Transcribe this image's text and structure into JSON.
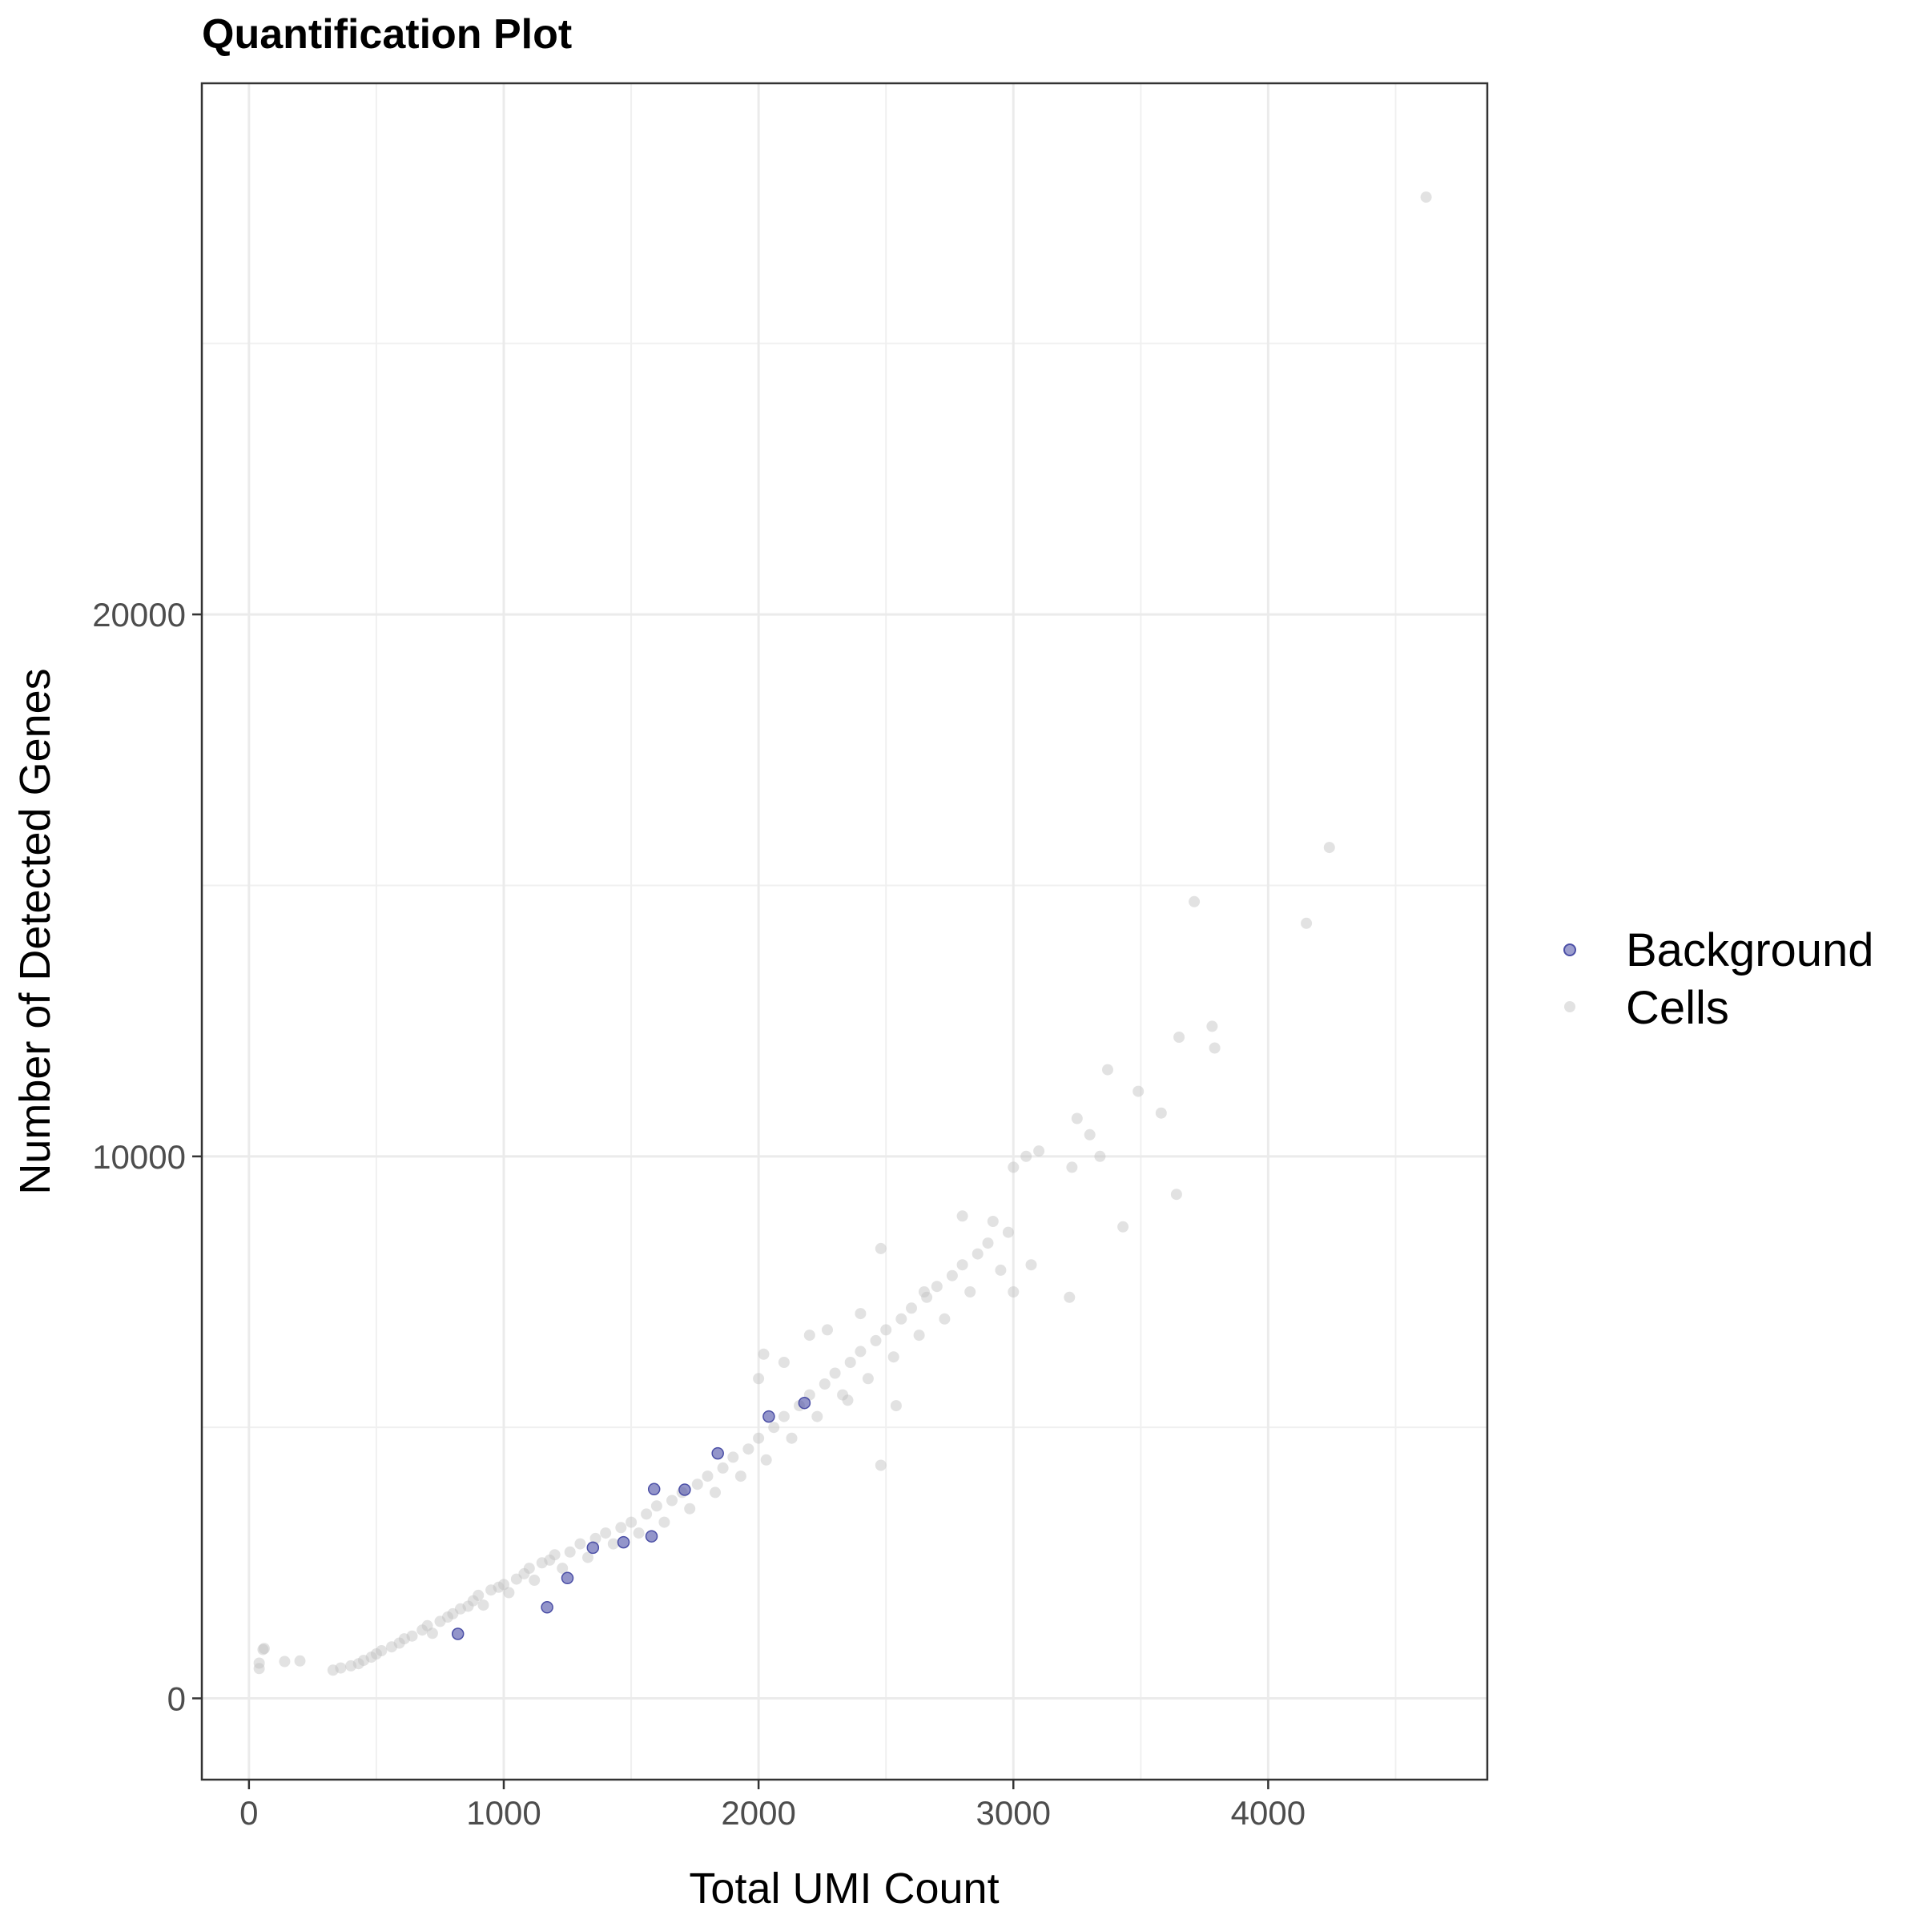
{
  "chart_data": {
    "type": "scatter",
    "title": "Quantification Plot",
    "xlabel": "Total UMI Count",
    "ylabel": "Number of Detected Genes",
    "xlim": [
      -185,
      4860
    ],
    "ylim": [
      -1500,
      29800
    ],
    "x_ticks": [
      0,
      1000,
      2000,
      3000,
      4000
    ],
    "x_tick_labels": [
      "0",
      "1000",
      "2000",
      "3000",
      "4000"
    ],
    "y_ticks": [
      0,
      10000,
      20000
    ],
    "y_tick_labels": [
      "0",
      "10000",
      "20000"
    ],
    "grid": true,
    "legend_position": "right",
    "legend": [
      "Background",
      "Cells"
    ],
    "series": [
      {
        "name": "Background",
        "color": "#4b4fa6",
        "points": [
          [
            820,
            1190
          ],
          [
            1170,
            1680
          ],
          [
            1250,
            2220
          ],
          [
            1350,
            2780
          ],
          [
            1470,
            2880
          ],
          [
            1580,
            2990
          ],
          [
            1590,
            3860
          ],
          [
            1710,
            3850
          ],
          [
            1840,
            4520
          ],
          [
            2040,
            5200
          ],
          [
            2180,
            5450
          ]
        ]
      },
      {
        "name": "Cells",
        "color": "#bebebe",
        "points": [
          [
            40,
            550
          ],
          [
            40,
            650
          ],
          [
            55,
            900
          ],
          [
            60,
            920
          ],
          [
            140,
            680
          ],
          [
            200,
            690
          ],
          [
            330,
            520
          ],
          [
            360,
            560
          ],
          [
            400,
            600
          ],
          [
            430,
            640
          ],
          [
            450,
            700
          ],
          [
            480,
            760
          ],
          [
            500,
            820
          ],
          [
            520,
            880
          ],
          [
            560,
            950
          ],
          [
            590,
            1020
          ],
          [
            610,
            1100
          ],
          [
            640,
            1150
          ],
          [
            680,
            1260
          ],
          [
            700,
            1340
          ],
          [
            720,
            1200
          ],
          [
            750,
            1420
          ],
          [
            780,
            1500
          ],
          [
            800,
            1560
          ],
          [
            830,
            1650
          ],
          [
            860,
            1700
          ],
          [
            880,
            1800
          ],
          [
            900,
            1900
          ],
          [
            920,
            1720
          ],
          [
            950,
            2000
          ],
          [
            980,
            2050
          ],
          [
            1000,
            2100
          ],
          [
            1020,
            1950
          ],
          [
            1050,
            2200
          ],
          [
            1080,
            2300
          ],
          [
            1100,
            2400
          ],
          [
            1120,
            2180
          ],
          [
            1150,
            2500
          ],
          [
            1180,
            2550
          ],
          [
            1200,
            2650
          ],
          [
            1230,
            2400
          ],
          [
            1260,
            2700
          ],
          [
            1300,
            2850
          ],
          [
            1330,
            2600
          ],
          [
            1360,
            2950
          ],
          [
            1400,
            3050
          ],
          [
            1430,
            2850
          ],
          [
            1460,
            3150
          ],
          [
            1500,
            3250
          ],
          [
            1530,
            3050
          ],
          [
            1560,
            3400
          ],
          [
            1600,
            3550
          ],
          [
            1630,
            3250
          ],
          [
            1660,
            3650
          ],
          [
            1700,
            3800
          ],
          [
            1730,
            3500
          ],
          [
            1760,
            3950
          ],
          [
            1800,
            4100
          ],
          [
            1830,
            3800
          ],
          [
            1860,
            4250
          ],
          [
            1900,
            4450
          ],
          [
            1930,
            4100
          ],
          [
            1960,
            4600
          ],
          [
            2000,
            4800
          ],
          [
            2030,
            4400
          ],
          [
            2060,
            5000
          ],
          [
            2100,
            5200
          ],
          [
            2130,
            4800
          ],
          [
            2160,
            5400
          ],
          [
            2200,
            5600
          ],
          [
            2230,
            5200
          ],
          [
            2260,
            5800
          ],
          [
            2300,
            6000
          ],
          [
            2330,
            5600
          ],
          [
            2360,
            6200
          ],
          [
            2400,
            6400
          ],
          [
            2430,
            5900
          ],
          [
            2460,
            6600
          ],
          [
            2500,
            6800
          ],
          [
            2530,
            6300
          ],
          [
            2560,
            7000
          ],
          [
            2600,
            7200
          ],
          [
            2630,
            6700
          ],
          [
            2660,
            7400
          ],
          [
            2700,
            7600
          ],
          [
            2730,
            7000
          ],
          [
            2760,
            7800
          ],
          [
            2800,
            8000
          ],
          [
            2830,
            7500
          ],
          [
            2860,
            8200
          ],
          [
            2900,
            8400
          ],
          [
            2950,
            7900
          ],
          [
            2980,
            8600
          ],
          [
            3000,
            9800
          ],
          [
            3050,
            10000
          ],
          [
            3100,
            10100
          ],
          [
            3230,
            9800
          ],
          [
            3250,
            10700
          ],
          [
            3300,
            10400
          ],
          [
            3340,
            10000
          ],
          [
            3370,
            11600
          ],
          [
            3430,
            8700
          ],
          [
            3490,
            11200
          ],
          [
            3580,
            10800
          ],
          [
            3640,
            9300
          ],
          [
            3650,
            12200
          ],
          [
            3710,
            14700
          ],
          [
            3780,
            12400
          ],
          [
            3790,
            12000
          ],
          [
            4150,
            14300
          ],
          [
            4240,
            15700
          ],
          [
            4620,
            27700
          ],
          [
            2020,
            6350
          ],
          [
            2350,
            5500
          ],
          [
            2480,
            4300
          ],
          [
            2000,
            5900
          ],
          [
            2100,
            6200
          ],
          [
            2200,
            6700
          ],
          [
            2270,
            6800
          ],
          [
            2400,
            7100
          ],
          [
            2480,
            8300
          ],
          [
            2540,
            5400
          ],
          [
            2650,
            7500
          ],
          [
            2800,
            8900
          ],
          [
            2920,
            8800
          ],
          [
            3000,
            7500
          ],
          [
            3070,
            8000
          ],
          [
            3220,
            7400
          ]
        ]
      }
    ]
  },
  "legend_items": [
    {
      "label": "Background",
      "color": "#4b4fa6"
    },
    {
      "label": "Cells",
      "color": "#bebebe"
    }
  ]
}
